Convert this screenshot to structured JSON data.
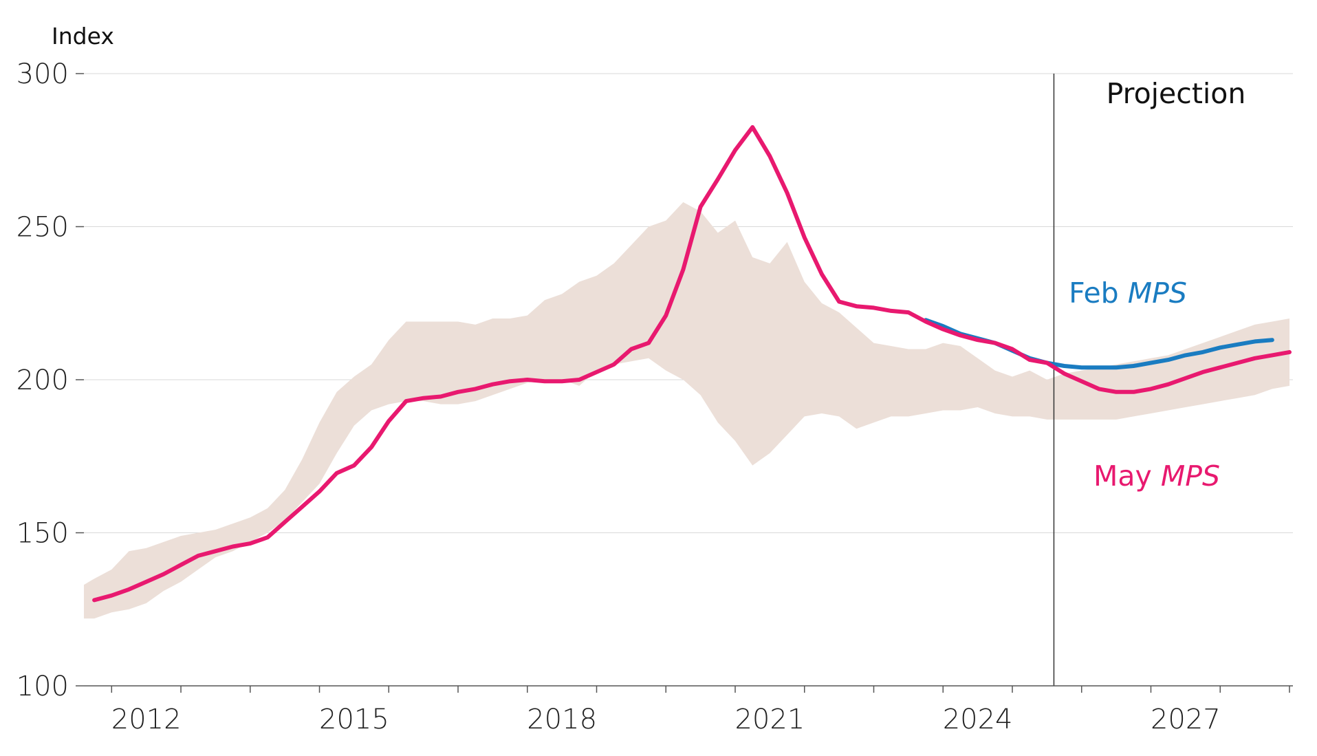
{
  "chart_data": {
    "type": "line",
    "ylabel": "Index",
    "ylim": [
      100,
      300
    ],
    "yticks": [
      "100",
      "150",
      "200",
      "250",
      "300"
    ],
    "xlim": [
      2011.6,
      2029.05
    ],
    "xticks": [
      "2012",
      "2015",
      "2018",
      "2021",
      "2024",
      "2027"
    ],
    "grid": true,
    "projection_start": 2025.6,
    "projection_label": "Projection",
    "colors": {
      "may": "#e8196f",
      "feb": "#1a7cc1",
      "band": "#ecdfd8",
      "grid": "#d9d9d9",
      "axis": "#555555"
    },
    "series": [
      {
        "name_text": "May",
        "name_italic": "MPS",
        "color": "#e8196f",
        "x": [
          2011.75,
          2012.0,
          2012.25,
          2012.5,
          2012.75,
          2013.0,
          2013.25,
          2013.5,
          2013.75,
          2014.0,
          2014.25,
          2014.5,
          2014.75,
          2015.0,
          2015.25,
          2015.5,
          2015.75,
          2016.0,
          2016.25,
          2016.5,
          2016.75,
          2017.0,
          2017.25,
          2017.5,
          2017.75,
          2018.0,
          2018.25,
          2018.5,
          2018.75,
          2019.0,
          2019.25,
          2019.5,
          2019.75,
          2020.0,
          2020.25,
          2020.5,
          2020.75,
          2021.0,
          2021.25,
          2021.5,
          2021.75,
          2022.0,
          2022.25,
          2022.5,
          2022.75,
          2023.0,
          2023.25,
          2023.5,
          2023.75,
          2024.0,
          2024.25,
          2024.5,
          2024.75,
          2025.0,
          2025.25,
          2025.5,
          2025.75,
          2026.0,
          2026.25,
          2026.5,
          2026.75,
          2027.0,
          2027.25,
          2027.5,
          2027.75,
          2028.0,
          2028.25,
          2028.5,
          2028.75,
          2029.0
        ],
        "values": [
          128,
          129.5,
          131.5,
          134,
          136.5,
          139.5,
          142.5,
          144,
          145.5,
          146.5,
          148.5,
          153.5,
          158.5,
          163.5,
          169.5,
          172,
          178,
          186.5,
          193,
          194,
          194.5,
          196,
          197,
          198.5,
          199.5,
          200,
          199.5,
          199.5,
          200,
          202.5,
          205,
          210,
          212,
          221,
          236,
          256.5,
          265.5,
          275,
          282.5,
          273,
          261,
          246.5,
          234.5,
          225.5,
          224,
          223.5,
          222.5,
          222,
          219,
          216.5,
          214.5,
          213,
          212,
          210,
          206.5,
          205.5,
          202,
          199.5,
          197,
          196,
          196,
          197,
          198.5,
          200.5,
          202.5,
          204,
          205.5,
          207,
          208,
          209
        ]
      },
      {
        "name_text": "Feb",
        "name_italic": "MPS",
        "color": "#1a7cc1",
        "x": [
          2023.75,
          2024.0,
          2024.25,
          2024.5,
          2024.75,
          2025.0,
          2025.25,
          2025.5,
          2025.75,
          2026.0,
          2026.25,
          2026.5,
          2026.75,
          2027.0,
          2027.25,
          2027.5,
          2027.75,
          2028.0,
          2028.25,
          2028.5,
          2028.75
        ],
        "values": [
          219.5,
          217.5,
          215,
          213.5,
          212,
          209.5,
          207,
          205.5,
          204.5,
          204,
          204,
          204,
          204.5,
          205.5,
          206.5,
          208,
          209,
          210.5,
          211.5,
          212.5,
          213
        ]
      }
    ],
    "band": {
      "x": [
        2011.6,
        2011.75,
        2012.0,
        2012.25,
        2012.5,
        2012.75,
        2013.0,
        2013.25,
        2013.5,
        2013.75,
        2014.0,
        2014.25,
        2014.5,
        2014.75,
        2015.0,
        2015.25,
        2015.5,
        2015.75,
        2016.0,
        2016.25,
        2016.5,
        2016.75,
        2017.0,
        2017.25,
        2017.5,
        2017.75,
        2018.0,
        2018.25,
        2018.5,
        2018.75,
        2019.0,
        2019.25,
        2019.5,
        2019.75,
        2020.0,
        2020.25,
        2020.5,
        2020.75,
        2021.0,
        2021.25,
        2021.5,
        2021.75,
        2022.0,
        2022.25,
        2022.5,
        2022.75,
        2023.0,
        2023.25,
        2023.5,
        2023.75,
        2024.0,
        2024.25,
        2024.5,
        2024.75,
        2025.0,
        2025.25,
        2025.5,
        2025.75,
        2026.0,
        2026.25,
        2026.5,
        2026.75,
        2027.0,
        2027.25,
        2027.5,
        2027.75,
        2028.0,
        2028.25,
        2028.5,
        2028.75,
        2029.0
      ],
      "upper": [
        133,
        135,
        138,
        144,
        145,
        147,
        149,
        150,
        151,
        153,
        155,
        158,
        164,
        174,
        186,
        196,
        201,
        205,
        213,
        219,
        219,
        219,
        219,
        218,
        220,
        220,
        221,
        226,
        228,
        232,
        234,
        238,
        244,
        250,
        252,
        258,
        255,
        248,
        252,
        240,
        238,
        245,
        232,
        225,
        222,
        217,
        212,
        211,
        210,
        210,
        212,
        211,
        207,
        203,
        201,
        203,
        200,
        202,
        203,
        204,
        205,
        206,
        207,
        208,
        210,
        212,
        214,
        216,
        218,
        219,
        220
      ],
      "lower": [
        122,
        122,
        124,
        125,
        127,
        131,
        134,
        138,
        142,
        144,
        147,
        150,
        154,
        160,
        166,
        176,
        185,
        190,
        192,
        193,
        193,
        192,
        192,
        193,
        195,
        197,
        199,
        200,
        200,
        198,
        203,
        205,
        206,
        207,
        203,
        200,
        195,
        186,
        180,
        172,
        176,
        182,
        188,
        189,
        188,
        184,
        186,
        188,
        188,
        189,
        190,
        190,
        191,
        189,
        188,
        188,
        187,
        187,
        187,
        187,
        187,
        188,
        189,
        190,
        191,
        192,
        193,
        194,
        195,
        197,
        198
      ]
    }
  }
}
